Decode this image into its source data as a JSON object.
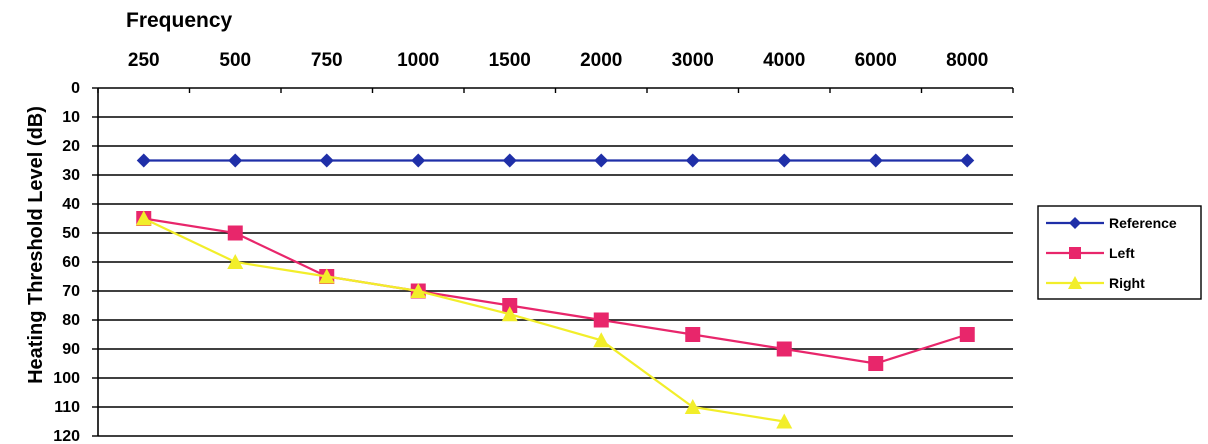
{
  "chart_data": {
    "type": "line",
    "xlabel": "Frequency",
    "ylabel": "Heating Threshold Level (dB)",
    "categories": [
      "250",
      "500",
      "750",
      "1000",
      "1500",
      "2000",
      "3000",
      "4000",
      "6000",
      "8000"
    ],
    "ylim": [
      0,
      120
    ],
    "y_inverted": true,
    "y_ticks": [
      0,
      10,
      20,
      30,
      40,
      50,
      60,
      70,
      80,
      90,
      100,
      110,
      120
    ],
    "x_axis_position": "top",
    "grid": true,
    "legend_position": "right",
    "series": [
      {
        "name": "Reference",
        "color": "#1f2fa8",
        "marker": "diamond",
        "values": [
          25,
          25,
          25,
          25,
          25,
          25,
          25,
          25,
          25,
          25
        ]
      },
      {
        "name": "Left",
        "color": "#e8266b",
        "marker": "square",
        "values": [
          45,
          50,
          65,
          70,
          75,
          80,
          85,
          90,
          95,
          85
        ]
      },
      {
        "name": "Right",
        "color": "#f2ee2a",
        "marker": "triangle",
        "values": [
          45,
          60,
          65,
          70,
          78,
          87,
          110,
          115,
          null,
          null
        ]
      }
    ]
  }
}
